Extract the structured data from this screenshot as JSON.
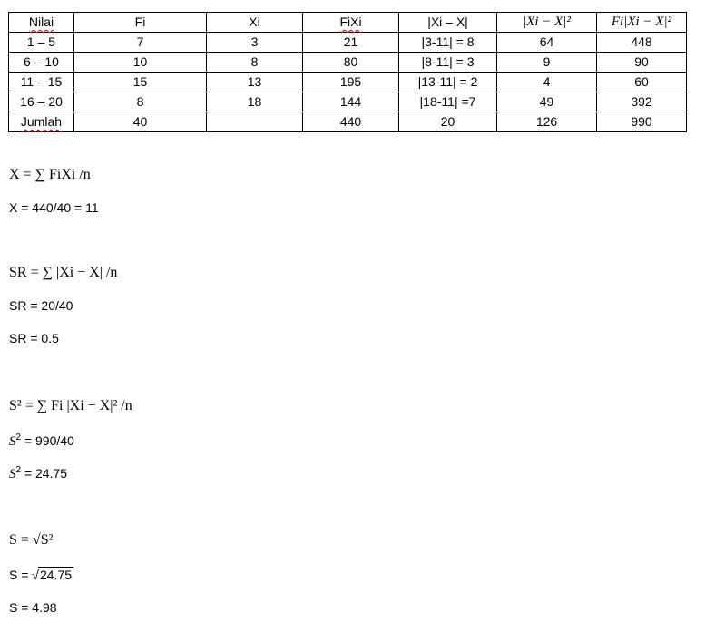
{
  "table": {
    "headers": [
      "Nilai",
      "Fi",
      "Xi",
      "FiXi",
      "|Xi – X|",
      "|Xi − X|²",
      "Fi|Xi − X|²"
    ],
    "rows": [
      [
        "1 – 5",
        "7",
        "3",
        "21",
        "|3-11| = 8",
        "64",
        "448"
      ],
      [
        "6 – 10",
        "10",
        "8",
        "80",
        "|8-11| = 3",
        "9",
        "90"
      ],
      [
        "11 – 15",
        "15",
        "13",
        "195",
        "|13-11| = 2",
        "4",
        "60"
      ],
      [
        "16 – 20",
        "8",
        "18",
        "144",
        "|18-11| =7",
        "49",
        "392"
      ],
      [
        "Jumlah",
        "40",
        "",
        "440",
        "20",
        "126",
        "990"
      ]
    ]
  },
  "formulas": {
    "mean_formula": "X = ∑ FiXi /n",
    "mean_calc": "X = 440/40 = 11",
    "sr_formula": "SR = ∑ |Xi − X| /n",
    "sr_calc": "SR = 20/40",
    "sr_result": "SR = 0.5",
    "var_formula": "S² = ∑ Fi |Xi − X|² /n",
    "var_calc_rest": " = 990/40",
    "var_result_rest": " = 24.75",
    "s_formula": "S = √S²",
    "s_calc": "24.75",
    "s_result": "S = 4.98"
  }
}
